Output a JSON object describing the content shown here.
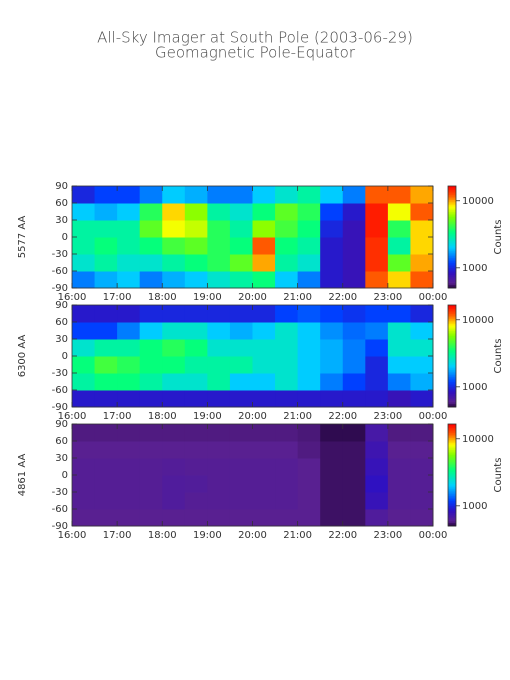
{
  "header": {
    "title": "All-Sky Imager at South Pole (2003-06-29)",
    "subtitle": "Geomagnetic Pole-Equator"
  },
  "chart_data": [
    {
      "type": "heatmap",
      "ylabel": "5577 AA",
      "colormap": "rainbow",
      "color_log": true,
      "x_edges": [
        16,
        16.5,
        17,
        17.5,
        18,
        18.5,
        19,
        19.5,
        20,
        20.5,
        21,
        21.5,
        22,
        22.5,
        23,
        23.5,
        24
      ],
      "y_edges": [
        -90,
        -60,
        -30,
        0,
        30,
        60,
        90
      ],
      "z": [
        [
          1500,
          1800,
          2000,
          1500,
          1800,
          2000,
          2500,
          3000,
          3500,
          2000,
          1500,
          900,
          800,
          12000,
          9000,
          12000
        ],
        [
          2500,
          3000,
          2500,
          2500,
          3000,
          3500,
          4000,
          5000,
          10000,
          3000,
          2500,
          900,
          800,
          14000,
          5000,
          10000
        ],
        [
          3000,
          3500,
          3000,
          3500,
          4500,
          5000,
          4000,
          3500,
          12000,
          3500,
          3000,
          900,
          800,
          14000,
          3000,
          9000
        ],
        [
          3000,
          3000,
          3000,
          5000,
          8000,
          7000,
          4000,
          3000,
          6000,
          4500,
          3500,
          1000,
          800,
          15000,
          4000,
          9000
        ],
        [
          2000,
          1800,
          2000,
          4000,
          9000,
          6000,
          3000,
          2500,
          3500,
          5000,
          4000,
          1200,
          900,
          15000,
          8000,
          12000
        ],
        [
          1000,
          1200,
          1200,
          1500,
          2000,
          1800,
          1500,
          1500,
          2000,
          2500,
          3000,
          2000,
          1500,
          12000,
          12000,
          10000
        ]
      ],
      "xlim": [
        16,
        24
      ],
      "xticks": [
        {
          "value": 16,
          "label": "16:00"
        },
        {
          "value": 17,
          "label": "17:00"
        },
        {
          "value": 18,
          "label": "18:00"
        },
        {
          "value": 19,
          "label": "19:00"
        },
        {
          "value": 20,
          "label": "20:00"
        },
        {
          "value": 21,
          "label": "21:00"
        },
        {
          "value": 22,
          "label": "22:00"
        },
        {
          "value": 23,
          "label": "23:00"
        },
        {
          "value": 24,
          "label": "00:00"
        }
      ],
      "ylim": [
        -90,
        90
      ],
      "yticks": [
        -90,
        -60,
        -30,
        0,
        30,
        60,
        90
      ],
      "clim": [
        500,
        16600
      ],
      "cticks": [
        1000,
        10000
      ],
      "colorbar_label": "Counts"
    },
    {
      "type": "heatmap",
      "ylabel": "6300 AA",
      "colormap": "rainbow",
      "color_log": true,
      "x_edges": [
        16,
        16.5,
        17,
        17.5,
        18,
        18.5,
        19,
        19.5,
        20,
        20.5,
        21,
        21.5,
        22,
        22.5,
        23,
        23.5,
        24
      ],
      "y_edges": [
        -90,
        -60,
        -30,
        0,
        30,
        60,
        90
      ],
      "z": [
        [
          900,
          900,
          900,
          900,
          900,
          900,
          900,
          900,
          900,
          900,
          900,
          900,
          900,
          900,
          800,
          900
        ],
        [
          3000,
          3500,
          3500,
          3000,
          2500,
          2500,
          3000,
          2000,
          2000,
          2500,
          2000,
          1500,
          1200,
          1000,
          1500,
          1800
        ],
        [
          3500,
          4500,
          4000,
          3500,
          3500,
          3000,
          3000,
          3000,
          2500,
          2500,
          2000,
          1800,
          1500,
          1000,
          2000,
          2000
        ],
        [
          2500,
          3000,
          3000,
          3500,
          4000,
          3500,
          2500,
          2500,
          2500,
          2500,
          2000,
          1800,
          1500,
          1200,
          2500,
          2500
        ],
        [
          1200,
          1200,
          1500,
          2000,
          2500,
          2500,
          2000,
          1800,
          2000,
          2500,
          2000,
          1600,
          1400,
          1500,
          2500,
          2000
        ],
        [
          900,
          900,
          900,
          1000,
          1000,
          1000,
          1000,
          1000,
          1000,
          1200,
          1300,
          1200,
          1100,
          1200,
          1200,
          1000
        ]
      ],
      "xlim": [
        16,
        24
      ],
      "xticks": [
        {
          "value": 16,
          "label": "16:00"
        },
        {
          "value": 17,
          "label": "17:00"
        },
        {
          "value": 18,
          "label": "18:00"
        },
        {
          "value": 19,
          "label": "19:00"
        },
        {
          "value": 20,
          "label": "20:00"
        },
        {
          "value": 21,
          "label": "21:00"
        },
        {
          "value": 22,
          "label": "22:00"
        },
        {
          "value": 23,
          "label": "23:00"
        },
        {
          "value": 24,
          "label": "00:00"
        }
      ],
      "ylim": [
        -90,
        90
      ],
      "yticks": [
        -90,
        -60,
        -30,
        0,
        30,
        60,
        90
      ],
      "clim": [
        500,
        16600
      ],
      "cticks": [
        1000,
        10000
      ],
      "colorbar_label": "Counts"
    },
    {
      "type": "heatmap",
      "ylabel": "4861 AA",
      "colormap": "rainbow",
      "color_log": true,
      "x_edges": [
        16,
        16.5,
        17,
        17.5,
        18,
        18.5,
        19,
        19.5,
        20,
        20.5,
        21,
        21.5,
        22,
        22.5,
        23,
        23.5,
        24
      ],
      "y_edges": [
        -90,
        -60,
        -30,
        0,
        30,
        60,
        90
      ],
      "z": [
        [
          600,
          600,
          600,
          600,
          600,
          600,
          600,
          600,
          600,
          600,
          600,
          550,
          550,
          650,
          600,
          600
        ],
        [
          620,
          620,
          620,
          620,
          650,
          620,
          620,
          620,
          620,
          620,
          600,
          550,
          550,
          800,
          620,
          620
        ],
        [
          620,
          620,
          620,
          620,
          650,
          640,
          620,
          620,
          620,
          620,
          600,
          550,
          550,
          850,
          620,
          620
        ],
        [
          620,
          620,
          620,
          620,
          630,
          620,
          620,
          620,
          620,
          620,
          600,
          550,
          550,
          800,
          620,
          620
        ],
        [
          600,
          600,
          600,
          600,
          600,
          600,
          600,
          600,
          600,
          600,
          580,
          550,
          550,
          750,
          600,
          600
        ],
        [
          580,
          580,
          580,
          580,
          580,
          580,
          580,
          580,
          580,
          580,
          570,
          530,
          530,
          700,
          580,
          580
        ]
      ],
      "xlim": [
        16,
        24
      ],
      "xticks": [
        {
          "value": 16,
          "label": "16:00"
        },
        {
          "value": 17,
          "label": "17:00"
        },
        {
          "value": 18,
          "label": "18:00"
        },
        {
          "value": 19,
          "label": "19:00"
        },
        {
          "value": 20,
          "label": "20:00"
        },
        {
          "value": 21,
          "label": "21:00"
        },
        {
          "value": 22,
          "label": "22:00"
        },
        {
          "value": 23,
          "label": "23:00"
        },
        {
          "value": 24,
          "label": "00:00"
        }
      ],
      "ylim": [
        -90,
        90
      ],
      "yticks": [
        -90,
        -60,
        -30,
        0,
        30,
        60,
        90
      ],
      "clim": [
        500,
        16600
      ],
      "cticks": [
        1000,
        10000
      ],
      "colorbar_label": "Counts"
    }
  ]
}
